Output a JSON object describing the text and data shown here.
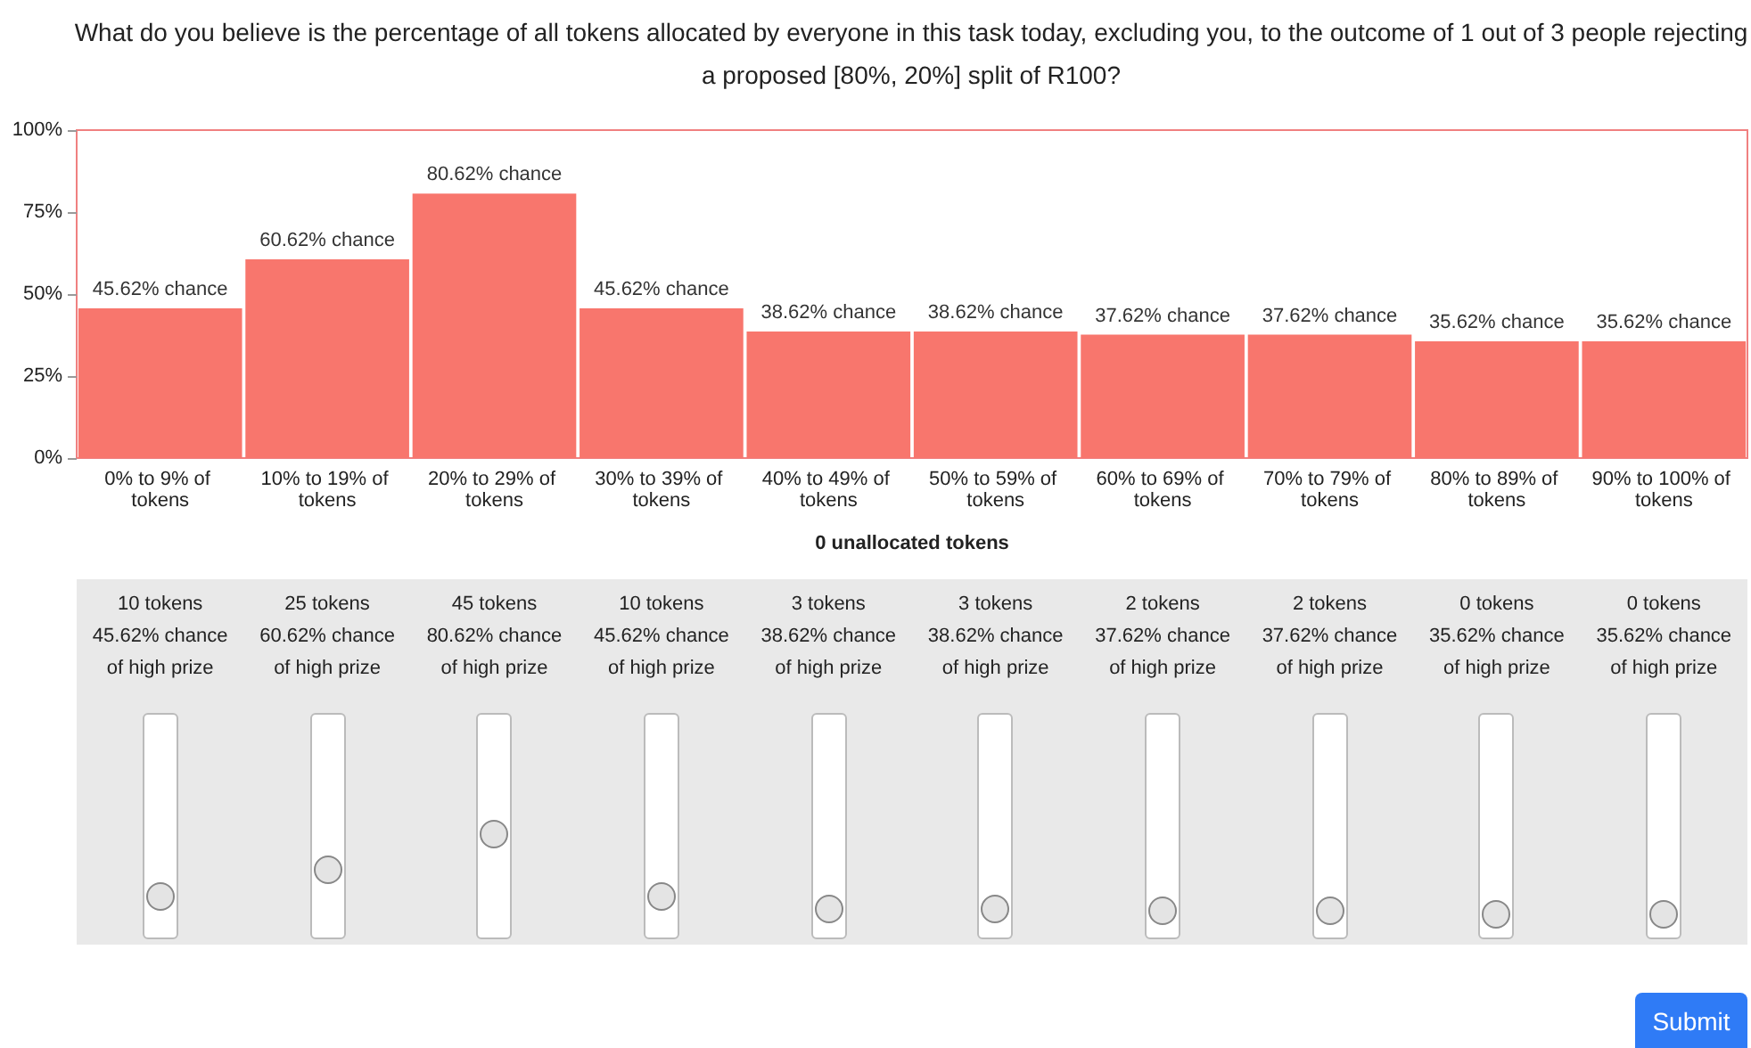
{
  "chart_data": {
    "type": "bar",
    "title": "What do you believe is the percentage of all tokens allocated by everyone in this task today, excluding you, to the outcome of 1 out of 3 people rejecting a proposed [80%, 20%] split of R100?",
    "categories": [
      "0% to 9% of tokens",
      "10% to 19% of tokens",
      "20% to 29% of tokens",
      "30% to 39% of tokens",
      "40% to 49% of tokens",
      "50% to 59% of tokens",
      "60% to 69% of tokens",
      "70% to 79% of tokens",
      "80% to 89% of tokens",
      "90% to 100% of tokens"
    ],
    "values": [
      45.62,
      60.62,
      80.62,
      45.62,
      38.62,
      38.62,
      37.62,
      37.62,
      35.62,
      35.62
    ],
    "value_labels": [
      "45.62% chance",
      "60.62% chance",
      "80.62% chance",
      "45.62% chance",
      "38.62% chance",
      "38.62% chance",
      "37.62% chance",
      "37.62% chance",
      "35.62% chance",
      "35.62% chance"
    ],
    "color": "#f8766d",
    "ylim": [
      0,
      100
    ],
    "yticks": [
      {
        "value": 0,
        "label": "0%"
      },
      {
        "value": 25,
        "label": "25%"
      },
      {
        "value": 50,
        "label": "50%"
      },
      {
        "value": 75,
        "label": "75%"
      },
      {
        "value": 100,
        "label": "100%"
      }
    ],
    "annotations": [
      "0 unallocated tokens",
      "10 tokens",
      "45.62% chance of high prize",
      "25 tokens",
      "60.62% chance of high prize",
      "45 tokens",
      "80.62% chance of high prize",
      "10 tokens",
      "45.62% chance of high prize",
      "3 tokens",
      "38.62% chance of high prize",
      "3 tokens",
      "38.62% chance of high prize",
      "2 tokens",
      "37.62% chance of high prize",
      "2 tokens",
      "37.62% chance of high prize",
      "0 tokens",
      "35.62% chance of high prize",
      "0 tokens",
      "35.62% chance of high prize",
      "Submit"
    ]
  }
}
